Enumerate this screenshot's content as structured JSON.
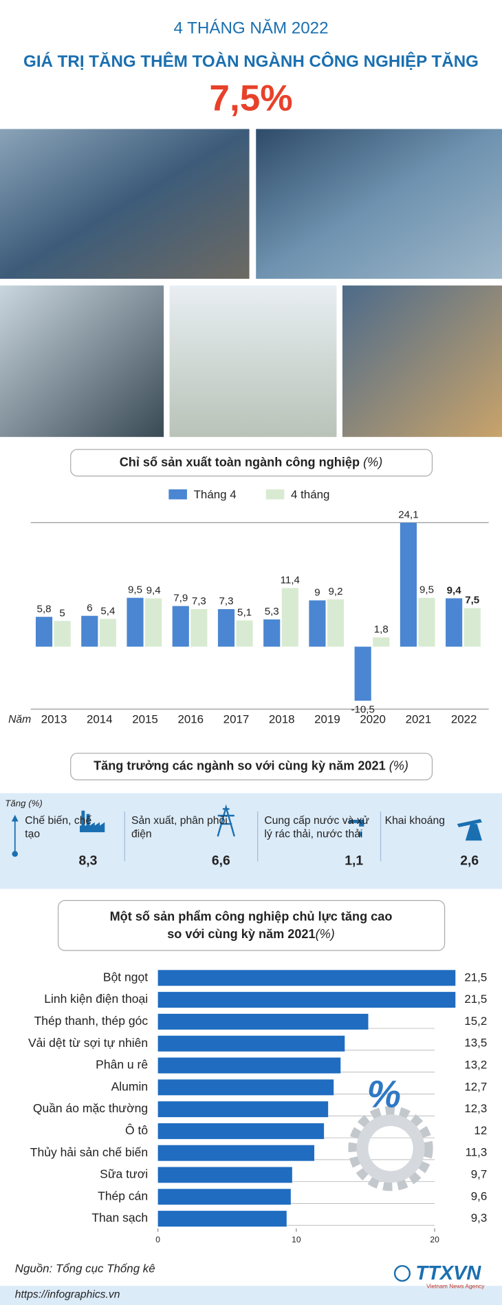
{
  "header": {
    "subtitle": "4 THÁNG NĂM 2022",
    "title": "GIÁ TRỊ TĂNG THÊM TOÀN NGÀNH CÔNG NGHIỆP TĂNG",
    "highlight": "7,5%"
  },
  "chart_data": [
    {
      "type": "bar",
      "title": "Chỉ số sản xuất toàn ngành công nghiệp",
      "title_unit": "(%)",
      "x_label": "Năm",
      "categories": [
        "2013",
        "2014",
        "2015",
        "2016",
        "2017",
        "2018",
        "2019",
        "2020",
        "2021",
        "2022"
      ],
      "series": [
        {
          "name": "Tháng 4",
          "color": "#4a86d2",
          "values": [
            5.8,
            6,
            9.5,
            7.9,
            7.3,
            5.3,
            9,
            -10.5,
            24.1,
            9.4
          ],
          "value_labels": [
            "5,8",
            "6",
            "9,5",
            "7,9",
            "7,3",
            "5,3",
            "9",
            "-10,5",
            "24,1",
            "9,4"
          ]
        },
        {
          "name": "4 tháng",
          "color": "#d8ebd2",
          "values": [
            5,
            5.4,
            9.4,
            7.3,
            5.1,
            11.4,
            9.2,
            1.8,
            9.5,
            7.5
          ],
          "value_labels": [
            "5",
            "5,4",
            "9,4",
            "7,3",
            "5,1",
            "11,4",
            "9,2",
            "1,8",
            "9,5",
            "7,5"
          ]
        }
      ]
    },
    {
      "type": "stat",
      "title": "Tăng trưởng các ngành so với cùng kỳ năm 2021",
      "title_unit": "(%)",
      "y_label": "Tăng (%)",
      "categories": [
        "Chế biến, chế tạo",
        "Sản xuất, phân phối điện",
        "Cung cấp nước và xử lý rác thải, nước thải",
        "Khai khoáng"
      ],
      "values": [
        8.3,
        6.6,
        1.1,
        2.6
      ],
      "value_labels": [
        "8,3",
        "6,6",
        "1,1",
        "2,6"
      ]
    },
    {
      "type": "barh",
      "title": [
        "Một số sản phẩm công nghiệp chủ lực tăng cao",
        "so với cùng kỳ năm 2021"
      ],
      "title_unit": "(%)",
      "categories": [
        "Bột ngọt",
        "Linh kiện điện thoại",
        "Thép thanh, thép góc",
        "Vải dệt từ sợi tự nhiên",
        "Phân u rê",
        "Alumin",
        "Quần áo mặc thường",
        "Ô tô",
        "Thủy hải sản chế biến",
        "Sữa tươi",
        "Thép cán",
        "Than sạch"
      ],
      "values": [
        21.5,
        21.5,
        15.2,
        13.5,
        13.2,
        12.7,
        12.3,
        12,
        11.3,
        9.7,
        9.6,
        9.3
      ],
      "value_labels": [
        "21,5",
        "21,5",
        "15,2",
        "13,5",
        "13,2",
        "12,7",
        "12,3",
        "12",
        "11,3",
        "9,7",
        "9,6",
        "9,3"
      ],
      "color": "#1f6cc0",
      "xlim": [
        0,
        20
      ],
      "xticks": [
        0,
        10,
        20
      ]
    }
  ],
  "footer": {
    "source": "Nguồn: Tổng cục Thống kê",
    "url": "https://infographics.vn",
    "logo": "TTXVN",
    "logo_sub": "Vietnam News Agency"
  }
}
